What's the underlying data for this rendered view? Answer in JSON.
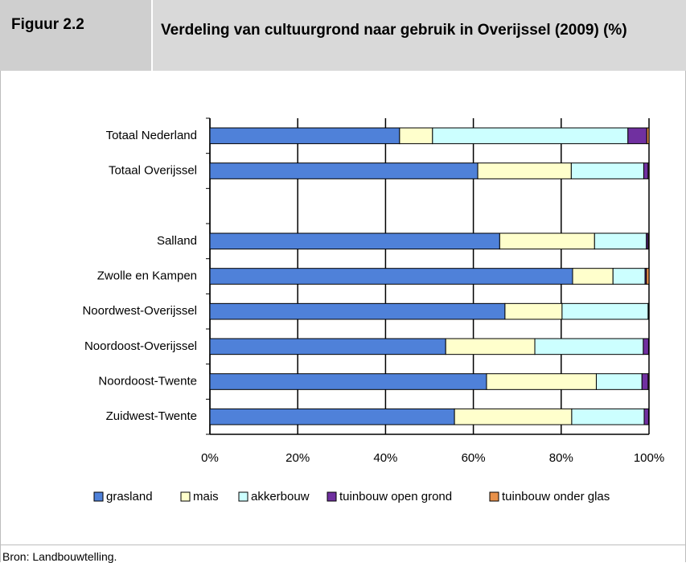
{
  "figure_label": "Figuur 2.2",
  "source": "Bron: Landbouwtelling.",
  "chart_data": {
    "type": "stacked_barh",
    "title": "Verdeling van cultuurgrond naar gebruik in Overijssel (2009) (%)",
    "categories": [
      "Totaal Nederland",
      "Totaal Overijssel",
      null,
      "Salland",
      "Zwolle en Kampen",
      "Noordwest-Overijssel",
      "Noordoost-Overijssel",
      "Noordoost-Twente",
      "Zuidwest-Twente"
    ],
    "series": [
      {
        "name": "grasland",
        "color": "#4f81d9",
        "values": [
          43.2,
          61,
          null,
          66,
          82.6,
          67.2,
          53.7,
          63,
          55.7
        ]
      },
      {
        "name": "mais",
        "color": "#ffffcc",
        "values": [
          7.5,
          21.3,
          null,
          21.6,
          9.2,
          13,
          20.3,
          25,
          26.7
        ]
      },
      {
        "name": "akkerbouw",
        "color": "#ccffff",
        "values": [
          44.5,
          16.5,
          null,
          11.8,
          7.3,
          19.6,
          24.7,
          10.4,
          16.5
        ]
      },
      {
        "name": "tuinbouw open grond",
        "color": "#7030a0",
        "values": [
          4.3,
          1,
          null,
          0.4,
          0.3,
          0.1,
          1.2,
          1.4,
          1
        ]
      },
      {
        "name": "tuinbouw onder glas",
        "color": "#e8914a",
        "values": [
          0.5,
          0.2,
          null,
          0.2,
          0.6,
          0.1,
          0.1,
          0.2,
          0.1
        ]
      }
    ],
    "xlim": [
      0,
      100
    ],
    "xticks": [
      {
        "value": 0,
        "label": "0%"
      },
      {
        "value": 20,
        "label": "20%"
      },
      {
        "value": 40,
        "label": "40%"
      },
      {
        "value": 60,
        "label": "60%"
      },
      {
        "value": 80,
        "label": "80%"
      },
      {
        "value": 100,
        "label": "100%"
      }
    ],
    "grid": true,
    "legend": "bottom"
  }
}
